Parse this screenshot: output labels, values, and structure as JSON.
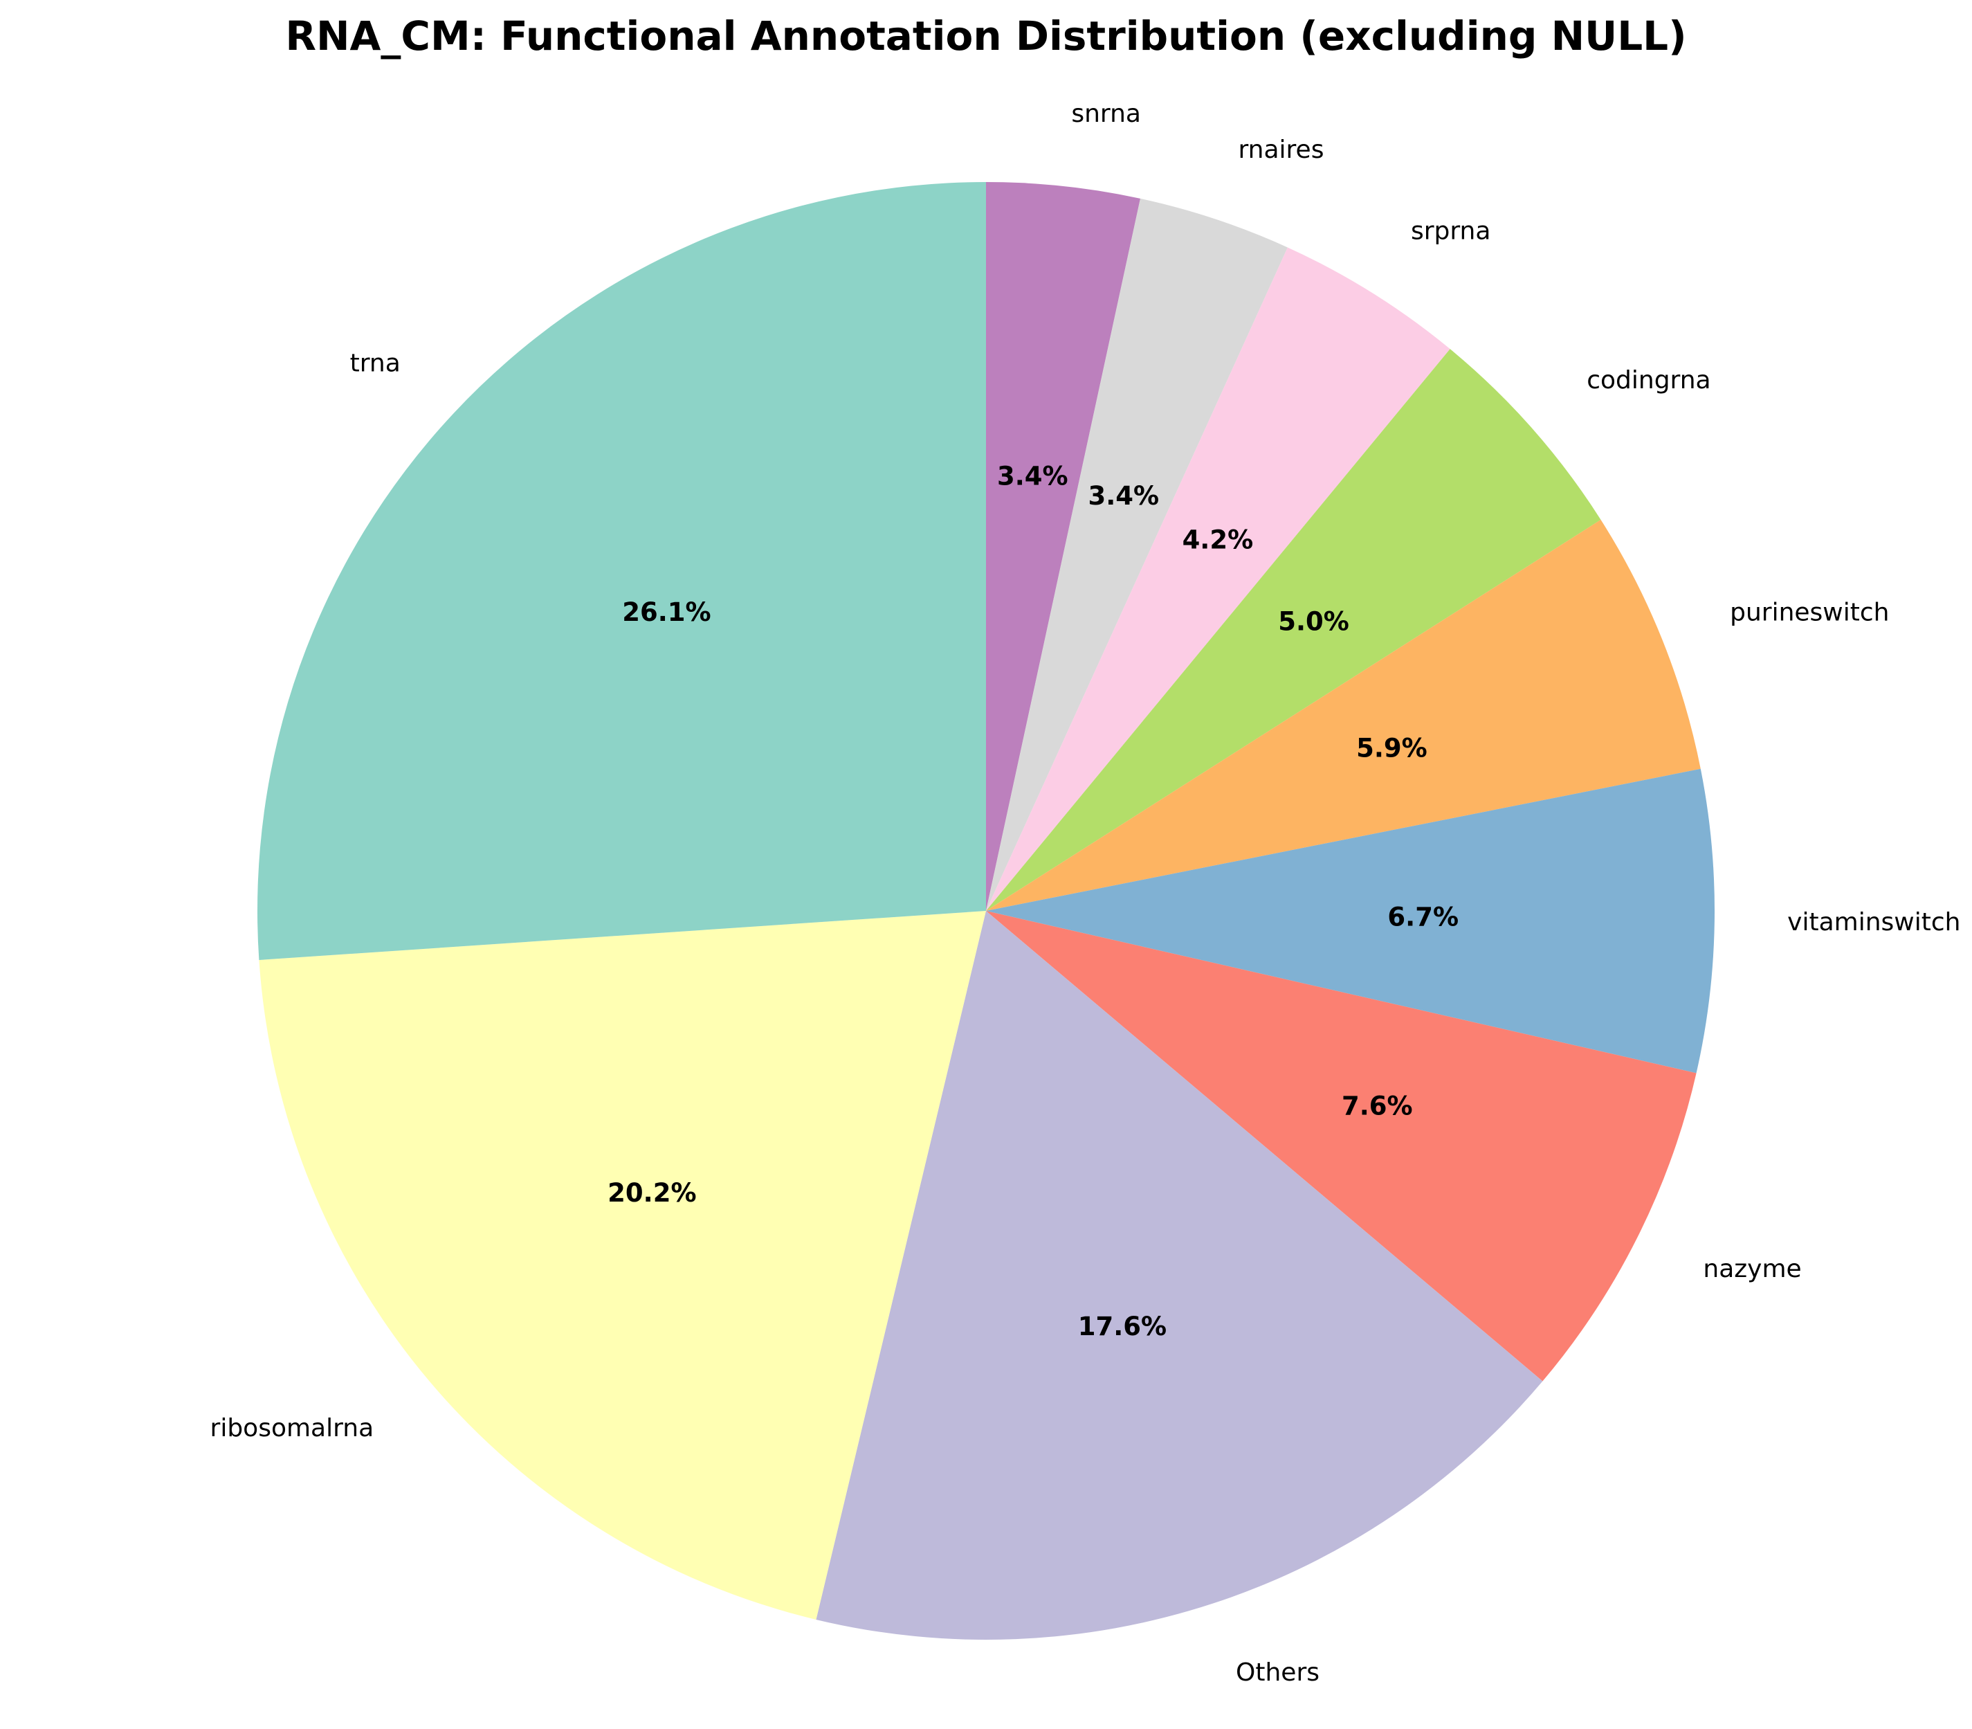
{
  "chart_data": {
    "type": "pie",
    "title": "RNA_CM: Functional Annotation Distribution (excluding NULL)",
    "start_angle_deg": 90,
    "direction": "clockwise",
    "slices": [
      {
        "label": "snrna",
        "value": 3.4,
        "pct_text": "3.4%",
        "color": "#bc80bd"
      },
      {
        "label": "rnaires",
        "value": 3.4,
        "pct_text": "3.4%",
        "color": "#d9d9d9"
      },
      {
        "label": "srprna",
        "value": 4.2,
        "pct_text": "4.2%",
        "color": "#fccde5"
      },
      {
        "label": "codingrna",
        "value": 5.0,
        "pct_text": "5.0%",
        "color": "#b3de69"
      },
      {
        "label": "purineswitch",
        "value": 5.9,
        "pct_text": "5.9%",
        "color": "#fdb462"
      },
      {
        "label": "vitaminswitch",
        "value": 6.7,
        "pct_text": "6.7%",
        "color": "#80b1d3"
      },
      {
        "label": "nazyme",
        "value": 7.6,
        "pct_text": "7.6%",
        "color": "#fb8072"
      },
      {
        "label": "Others",
        "value": 17.6,
        "pct_text": "17.6%",
        "color": "#bebada"
      },
      {
        "label": "ribosomalrna",
        "value": 20.2,
        "pct_text": "20.2%",
        "color": "#ffffb3"
      },
      {
        "label": "trna",
        "value": 26.1,
        "pct_text": "26.1%",
        "color": "#8dd3c7"
      }
    ]
  }
}
